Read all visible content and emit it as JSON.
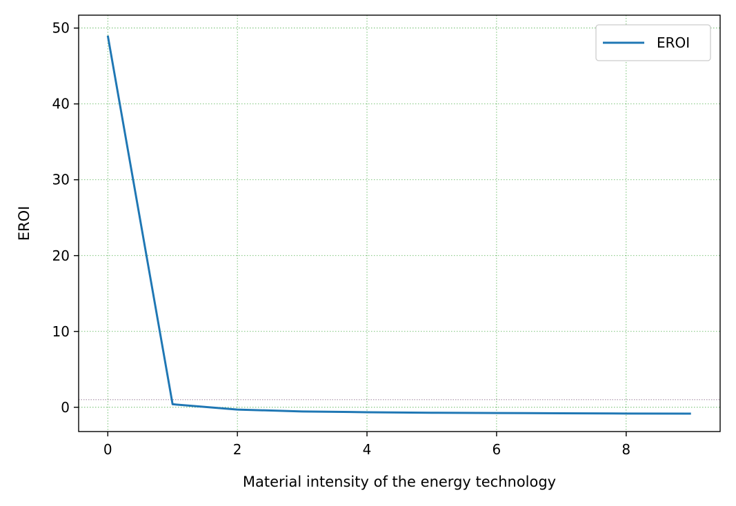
{
  "chart_data": {
    "type": "line",
    "title": "",
    "xlabel": "Material intensity of the energy technology",
    "ylabel": "EROI",
    "xlim": [
      -0.45,
      9.45
    ],
    "ylim": [
      -3.2,
      51.7
    ],
    "xticks": [
      0,
      2,
      4,
      6,
      8
    ],
    "yticks": [
      0,
      10,
      20,
      30,
      40,
      50
    ],
    "grid": true,
    "grid_style": "dotted",
    "grid_color": "#4daf4a",
    "reference_line": {
      "y": 1,
      "color": "#8c6d8c",
      "style": "dotted"
    },
    "legend": {
      "position": "top-right",
      "entries": [
        "EROI"
      ]
    },
    "series": [
      {
        "name": "EROI",
        "color": "#1f77b4",
        "x": [
          0,
          1,
          2,
          3,
          4,
          5,
          6,
          7,
          8,
          9
        ],
        "values": [
          49.0,
          0.4,
          -0.3,
          -0.55,
          -0.65,
          -0.72,
          -0.76,
          -0.79,
          -0.82,
          -0.84
        ]
      }
    ]
  }
}
